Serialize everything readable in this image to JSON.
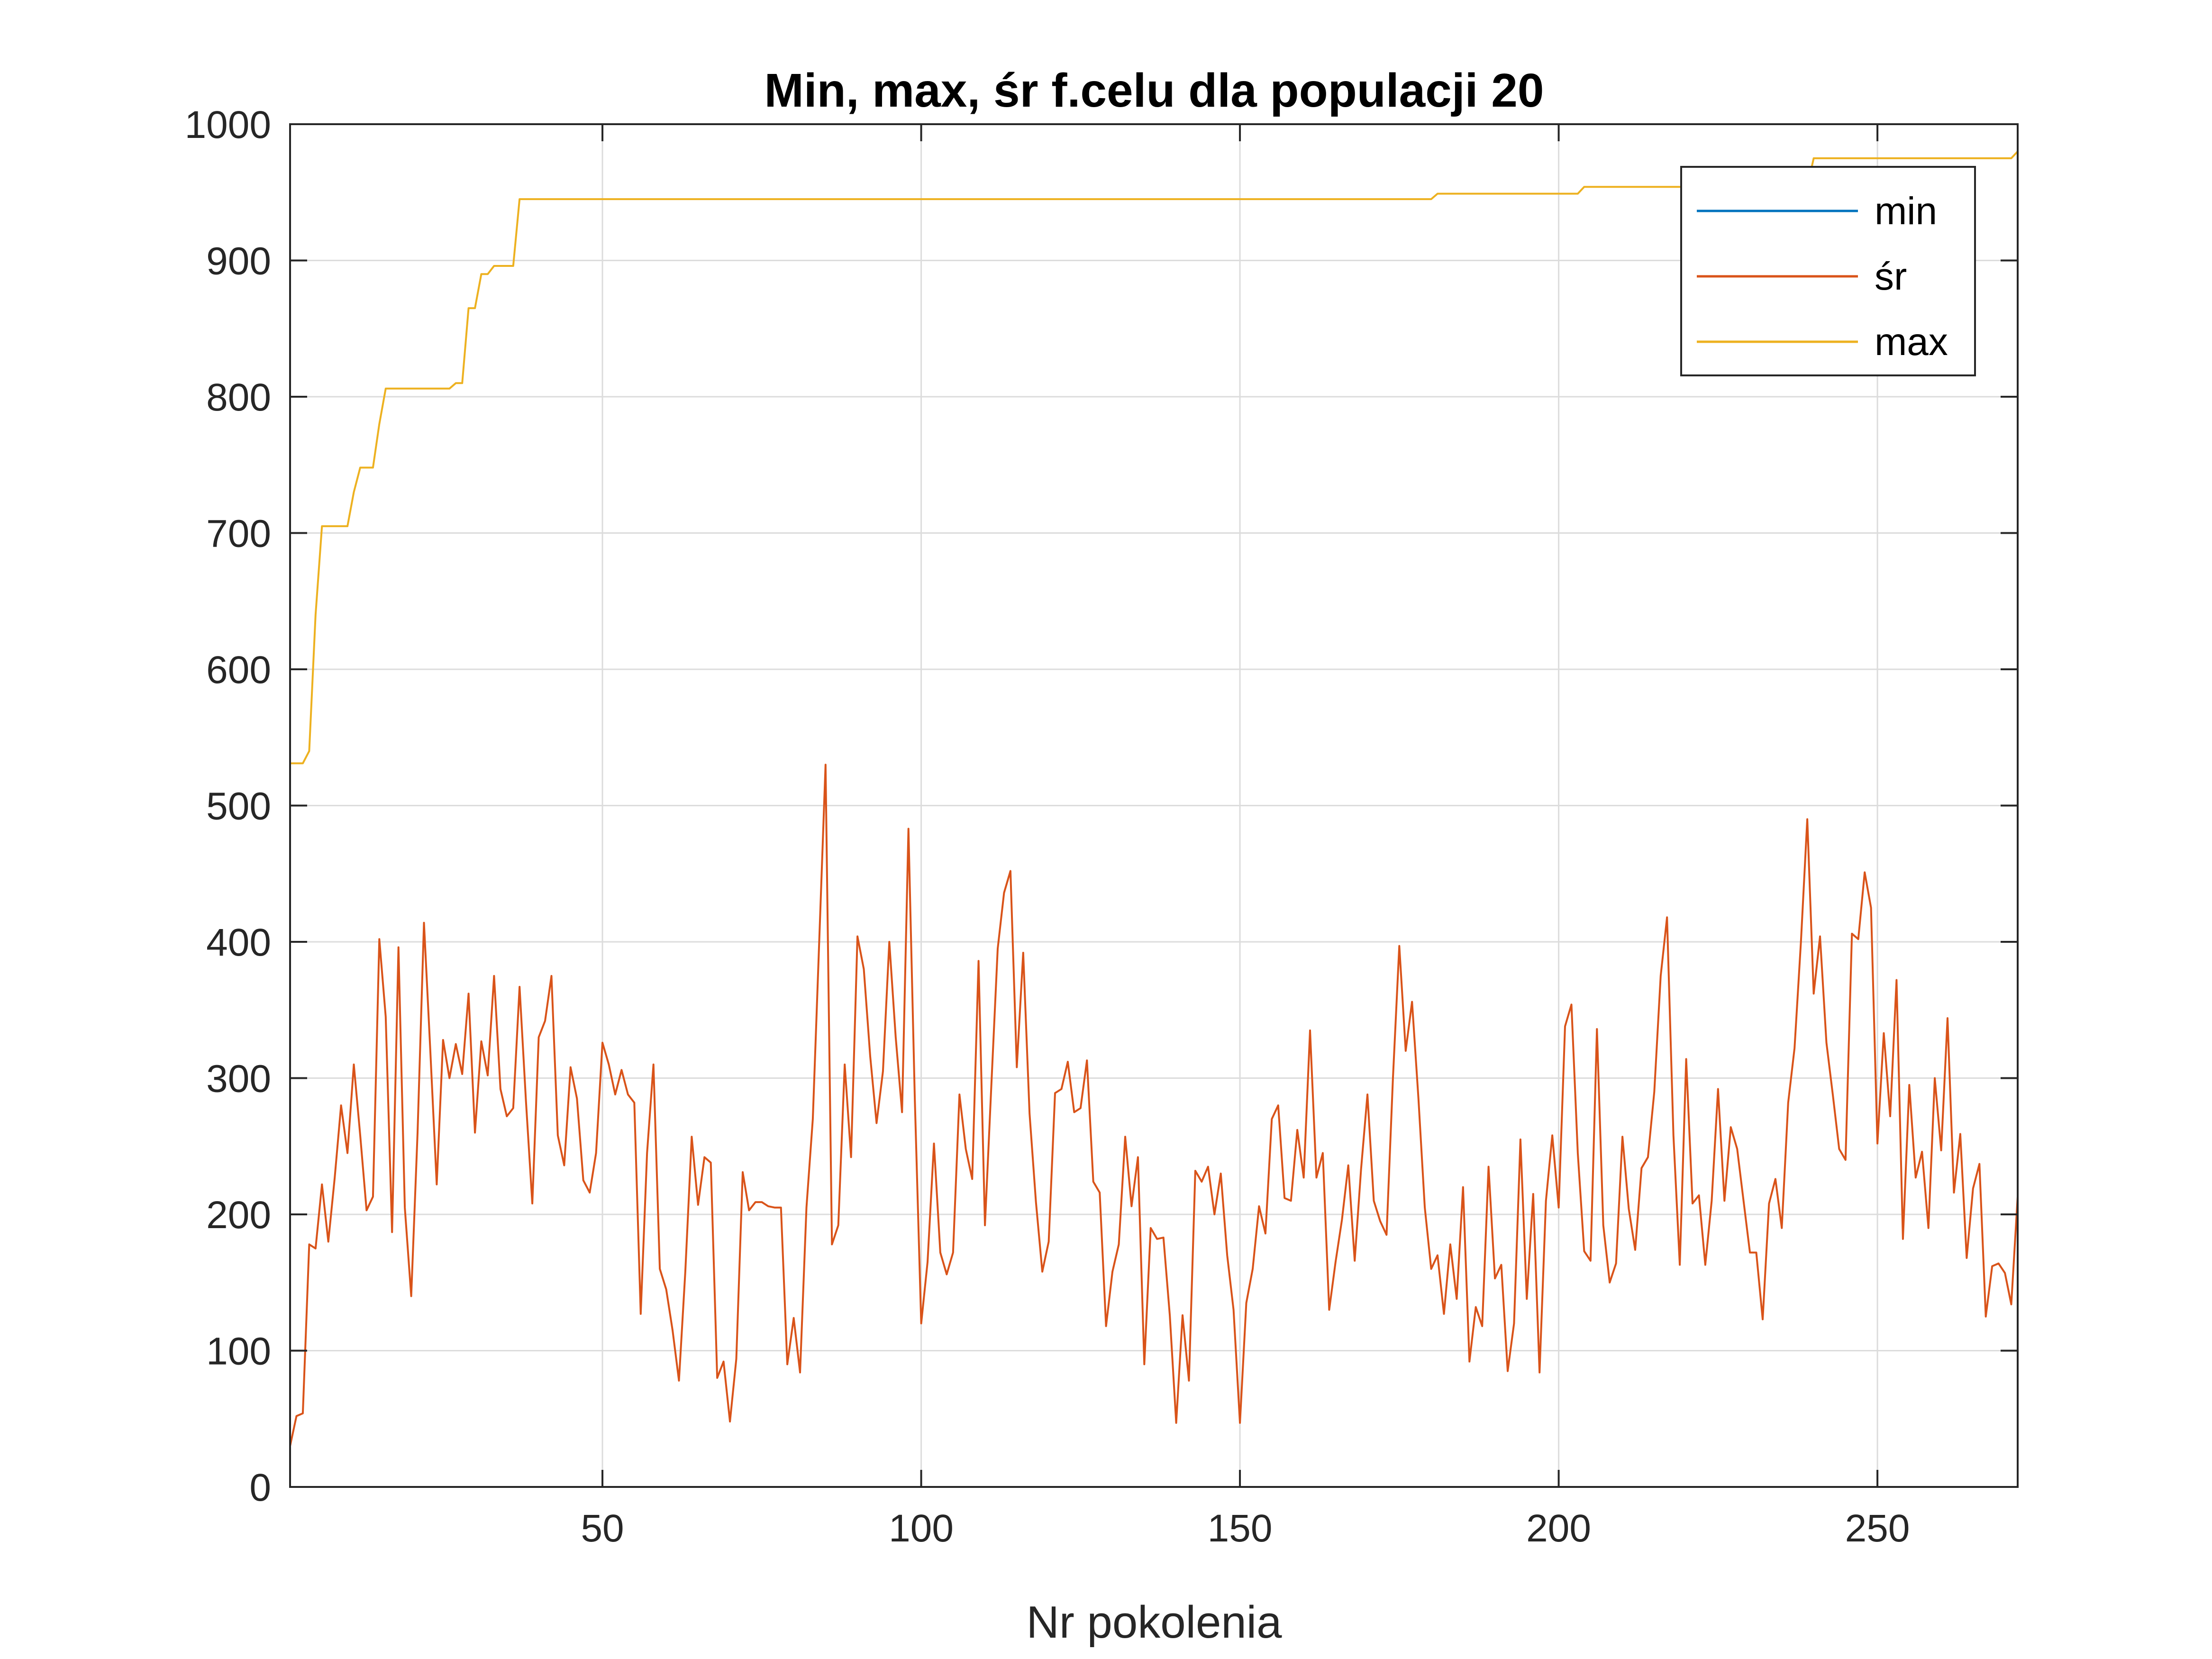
{
  "chart_data": {
    "type": "line",
    "title": "Min, max, śr f.celu dla populacji 20",
    "xlabel": "Nr pokolenia",
    "ylabel": "",
    "xlim": [
      1,
      272
    ],
    "ylim": [
      0,
      1000
    ],
    "xticks": [
      50,
      100,
      150,
      200,
      250
    ],
    "yticks": [
      0,
      100,
      200,
      300,
      400,
      500,
      600,
      700,
      800,
      900,
      1000
    ],
    "grid": true,
    "legend_position": "top-right",
    "series": [
      {
        "name": "min",
        "color": "#0072BD",
        "points": [
          [
            1,
            0
          ],
          [
            272,
            0
          ]
        ]
      },
      {
        "name": "śr",
        "color": "#D95319",
        "points": [
          [
            1,
            30
          ],
          [
            2,
            52
          ],
          [
            3,
            54
          ],
          [
            4,
            178
          ],
          [
            5,
            175
          ],
          [
            6,
            222
          ],
          [
            7,
            180
          ],
          [
            8,
            227
          ],
          [
            9,
            280
          ],
          [
            10,
            245
          ],
          [
            11,
            310
          ],
          [
            12,
            258
          ],
          [
            13,
            203
          ],
          [
            14,
            213
          ],
          [
            15,
            402
          ],
          [
            16,
            345
          ],
          [
            17,
            187
          ],
          [
            18,
            396
          ],
          [
            19,
            205
          ],
          [
            20,
            140
          ],
          [
            21,
            260
          ],
          [
            22,
            414
          ],
          [
            23,
            320
          ],
          [
            24,
            222
          ],
          [
            25,
            328
          ],
          [
            26,
            300
          ],
          [
            27,
            325
          ],
          [
            28,
            303
          ],
          [
            29,
            362
          ],
          [
            30,
            260
          ],
          [
            31,
            327
          ],
          [
            32,
            302
          ],
          [
            33,
            375
          ],
          [
            34,
            292
          ],
          [
            35,
            272
          ],
          [
            36,
            278
          ],
          [
            37,
            367
          ],
          [
            38,
            283
          ],
          [
            39,
            208
          ],
          [
            40,
            330
          ],
          [
            41,
            342
          ],
          [
            42,
            375
          ],
          [
            43,
            258
          ],
          [
            44,
            236
          ],
          [
            45,
            308
          ],
          [
            46,
            285
          ],
          [
            47,
            225
          ],
          [
            48,
            216
          ],
          [
            49,
            245
          ],
          [
            50,
            326
          ],
          [
            51,
            310
          ],
          [
            52,
            288
          ],
          [
            53,
            306
          ],
          [
            54,
            288
          ],
          [
            55,
            282
          ],
          [
            56,
            127
          ],
          [
            57,
            245
          ],
          [
            58,
            310
          ],
          [
            59,
            160
          ],
          [
            60,
            145
          ],
          [
            61,
            115
          ],
          [
            62,
            78
          ],
          [
            63,
            158
          ],
          [
            64,
            257
          ],
          [
            65,
            207
          ],
          [
            66,
            242
          ],
          [
            67,
            238
          ],
          [
            68,
            80
          ],
          [
            69,
            92
          ],
          [
            70,
            48
          ],
          [
            71,
            94
          ],
          [
            72,
            231
          ],
          [
            73,
            203
          ],
          [
            74,
            209
          ],
          [
            75,
            209
          ],
          [
            76,
            206
          ],
          [
            77,
            205
          ],
          [
            78,
            205
          ],
          [
            79,
            90
          ],
          [
            80,
            124
          ],
          [
            81,
            84
          ],
          [
            82,
            205
          ],
          [
            83,
            270
          ],
          [
            84,
            400
          ],
          [
            85,
            530
          ],
          [
            86,
            178
          ],
          [
            87,
            192
          ],
          [
            88,
            310
          ],
          [
            89,
            242
          ],
          [
            90,
            404
          ],
          [
            91,
            380
          ],
          [
            92,
            316
          ],
          [
            93,
            267
          ],
          [
            94,
            305
          ],
          [
            95,
            400
          ],
          [
            96,
            330
          ],
          [
            97,
            275
          ],
          [
            98,
            483
          ],
          [
            99,
            285
          ],
          [
            100,
            120
          ],
          [
            101,
            165
          ],
          [
            102,
            252
          ],
          [
            103,
            172
          ],
          [
            104,
            156
          ],
          [
            105,
            172
          ],
          [
            106,
            288
          ],
          [
            107,
            248
          ],
          [
            108,
            226
          ],
          [
            109,
            386
          ],
          [
            110,
            192
          ],
          [
            111,
            294
          ],
          [
            112,
            395
          ],
          [
            113,
            436
          ],
          [
            114,
            452
          ],
          [
            115,
            308
          ],
          [
            116,
            392
          ],
          [
            117,
            274
          ],
          [
            118,
            209
          ],
          [
            119,
            158
          ],
          [
            120,
            180
          ],
          [
            121,
            289
          ],
          [
            122,
            292
          ],
          [
            123,
            312
          ],
          [
            124,
            275
          ],
          [
            125,
            278
          ],
          [
            126,
            313
          ],
          [
            127,
            224
          ],
          [
            128,
            216
          ],
          [
            129,
            118
          ],
          [
            130,
            158
          ],
          [
            131,
            178
          ],
          [
            132,
            257
          ],
          [
            133,
            206
          ],
          [
            134,
            242
          ],
          [
            135,
            90
          ],
          [
            136,
            190
          ],
          [
            137,
            182
          ],
          [
            138,
            183
          ],
          [
            139,
            126
          ],
          [
            140,
            47
          ],
          [
            141,
            126
          ],
          [
            142,
            78
          ],
          [
            143,
            232
          ],
          [
            144,
            224
          ],
          [
            145,
            235
          ],
          [
            146,
            200
          ],
          [
            147,
            230
          ],
          [
            148,
            170
          ],
          [
            149,
            130
          ],
          [
            150,
            47
          ],
          [
            151,
            135
          ],
          [
            152,
            160
          ],
          [
            153,
            206
          ],
          [
            154,
            186
          ],
          [
            155,
            270
          ],
          [
            156,
            280
          ],
          [
            157,
            212
          ],
          [
            158,
            210
          ],
          [
            159,
            262
          ],
          [
            160,
            227
          ],
          [
            161,
            335
          ],
          [
            162,
            227
          ],
          [
            163,
            245
          ],
          [
            164,
            130
          ],
          [
            165,
            165
          ],
          [
            166,
            196
          ],
          [
            167,
            236
          ],
          [
            168,
            166
          ],
          [
            169,
            233
          ],
          [
            170,
            288
          ],
          [
            171,
            210
          ],
          [
            172,
            195
          ],
          [
            173,
            185
          ],
          [
            174,
            300
          ],
          [
            175,
            397
          ],
          [
            176,
            320
          ],
          [
            177,
            356
          ],
          [
            178,
            285
          ],
          [
            179,
            205
          ],
          [
            180,
            160
          ],
          [
            181,
            170
          ],
          [
            182,
            127
          ],
          [
            183,
            178
          ],
          [
            184,
            138
          ],
          [
            185,
            220
          ],
          [
            186,
            92
          ],
          [
            187,
            132
          ],
          [
            188,
            118
          ],
          [
            189,
            235
          ],
          [
            190,
            153
          ],
          [
            191,
            163
          ],
          [
            192,
            85
          ],
          [
            193,
            120
          ],
          [
            194,
            255
          ],
          [
            195,
            138
          ],
          [
            196,
            215
          ],
          [
            197,
            84
          ],
          [
            198,
            210
          ],
          [
            199,
            258
          ],
          [
            200,
            205
          ],
          [
            201,
            338
          ],
          [
            202,
            354
          ],
          [
            203,
            245
          ],
          [
            204,
            173
          ],
          [
            205,
            166
          ],
          [
            206,
            336
          ],
          [
            207,
            192
          ],
          [
            208,
            150
          ],
          [
            209,
            164
          ],
          [
            210,
            257
          ],
          [
            211,
            204
          ],
          [
            212,
            174
          ],
          [
            213,
            234
          ],
          [
            214,
            242
          ],
          [
            215,
            290
          ],
          [
            216,
            375
          ],
          [
            217,
            418
          ],
          [
            218,
            258
          ],
          [
            219,
            163
          ],
          [
            220,
            314
          ],
          [
            221,
            208
          ],
          [
            222,
            214
          ],
          [
            223,
            163
          ],
          [
            224,
            210
          ],
          [
            225,
            292
          ],
          [
            226,
            210
          ],
          [
            227,
            264
          ],
          [
            228,
            248
          ],
          [
            229,
            210
          ],
          [
            230,
            172
          ],
          [
            231,
            172
          ],
          [
            232,
            123
          ],
          [
            233,
            208
          ],
          [
            234,
            226
          ],
          [
            235,
            190
          ],
          [
            236,
            282
          ],
          [
            237,
            322
          ],
          [
            238,
            400
          ],
          [
            239,
            490
          ],
          [
            240,
            362
          ],
          [
            241,
            404
          ],
          [
            242,
            326
          ],
          [
            243,
            288
          ],
          [
            244,
            248
          ],
          [
            245,
            240
          ],
          [
            246,
            406
          ],
          [
            247,
            402
          ],
          [
            248,
            451
          ],
          [
            249,
            425
          ],
          [
            250,
            252
          ],
          [
            251,
            333
          ],
          [
            252,
            272
          ],
          [
            253,
            372
          ],
          [
            254,
            182
          ],
          [
            255,
            295
          ],
          [
            256,
            227
          ],
          [
            257,
            246
          ],
          [
            258,
            190
          ],
          [
            259,
            300
          ],
          [
            260,
            247
          ],
          [
            261,
            344
          ],
          [
            262,
            216
          ],
          [
            263,
            259
          ],
          [
            264,
            168
          ],
          [
            265,
            219
          ],
          [
            266,
            237
          ],
          [
            267,
            125
          ],
          [
            268,
            162
          ],
          [
            269,
            164
          ],
          [
            270,
            157
          ],
          [
            271,
            134
          ],
          [
            272,
            213
          ]
        ]
      },
      {
        "name": "max",
        "color": "#EDB120",
        "points": [
          [
            1,
            531
          ],
          [
            2,
            531
          ],
          [
            3,
            531
          ],
          [
            4,
            540
          ],
          [
            5,
            640
          ],
          [
            6,
            705
          ],
          [
            7,
            705
          ],
          [
            8,
            705
          ],
          [
            9,
            705
          ],
          [
            10,
            705
          ],
          [
            11,
            730
          ],
          [
            12,
            748
          ],
          [
            13,
            748
          ],
          [
            14,
            748
          ],
          [
            15,
            780
          ],
          [
            16,
            806
          ],
          [
            17,
            806
          ],
          [
            18,
            806
          ],
          [
            19,
            806
          ],
          [
            20,
            806
          ],
          [
            21,
            806
          ],
          [
            22,
            806
          ],
          [
            23,
            806
          ],
          [
            24,
            806
          ],
          [
            25,
            806
          ],
          [
            26,
            806
          ],
          [
            27,
            810
          ],
          [
            28,
            810
          ],
          [
            29,
            865
          ],
          [
            30,
            865
          ],
          [
            31,
            890
          ],
          [
            32,
            890
          ],
          [
            33,
            896
          ],
          [
            34,
            896
          ],
          [
            35,
            896
          ],
          [
            36,
            896
          ],
          [
            37,
            945
          ],
          [
            178,
            945
          ],
          [
            179,
            945
          ],
          [
            180,
            945
          ],
          [
            181,
            949
          ],
          [
            202,
            949
          ],
          [
            203,
            949
          ],
          [
            204,
            954
          ],
          [
            239,
            954
          ],
          [
            240,
            975
          ],
          [
            271,
            975
          ],
          [
            272,
            980
          ]
        ]
      }
    ]
  }
}
